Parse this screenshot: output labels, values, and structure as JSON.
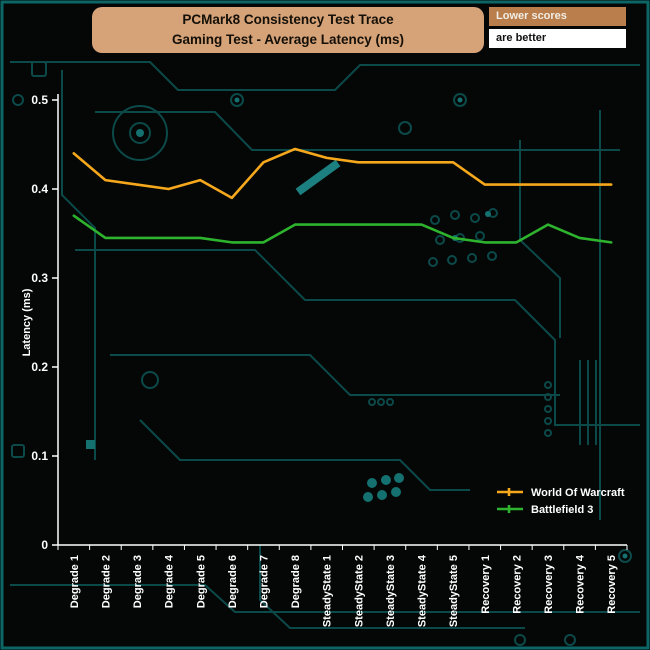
{
  "title_box": {
    "line1": "PCMark8 Consistency Test Trace",
    "line2": "Gaming Test -  Average Latency (ms)",
    "bg": "#d6a278",
    "text_color": "#141008"
  },
  "note": {
    "line1": "Lower scores",
    "line2": "are better",
    "line1_bg": "#b97e4b",
    "line1_color": "#f0ede4",
    "line2_bg": "#ffffff",
    "line2_color": "#111111"
  },
  "frame": {
    "background": "#050707",
    "border_color": "#0d6666",
    "axis_color": "#ffffff",
    "circuit_color": "#0c4949"
  },
  "chart_data": {
    "type": "line",
    "title": "PCMark8 Consistency Test Trace — Gaming Test - Average Latency (ms)",
    "xlabel": "",
    "ylabel": "Latency (ms)",
    "ylim": [
      0,
      0.5
    ],
    "yticks": [
      0,
      0.1,
      0.2,
      0.3,
      0.4,
      0.5
    ],
    "grid": false,
    "legend_position": "bottom-right",
    "categories": [
      "Degrade 1",
      "Degrade 2",
      "Degrade 3",
      "Degrade 4",
      "Degrade 5",
      "Degrade 6",
      "Degrade 7",
      "Degrade 8",
      "SteadyState 1",
      "SteadyState 2",
      "SteadyState 3",
      "SteadyState 4",
      "SteadyState 5",
      "Recovery 1",
      "Recovery 2",
      "Recovery 3",
      "Recovery 4",
      "Recovery 5"
    ],
    "series": [
      {
        "name": "World Of Warcraft",
        "color": "#f6a81c",
        "values": [
          0.44,
          0.41,
          0.405,
          0.4,
          0.41,
          0.39,
          0.43,
          0.445,
          0.435,
          0.43,
          0.43,
          0.43,
          0.43,
          0.405,
          0.405,
          0.405,
          0.405,
          0.405
        ]
      },
      {
        "name": "Battlefield 3",
        "color": "#2db32d",
        "values": [
          0.37,
          0.345,
          0.345,
          0.345,
          0.345,
          0.34,
          0.34,
          0.36,
          0.36,
          0.36,
          0.36,
          0.36,
          0.345,
          0.34,
          0.34,
          0.36,
          0.345,
          0.34
        ]
      }
    ]
  }
}
